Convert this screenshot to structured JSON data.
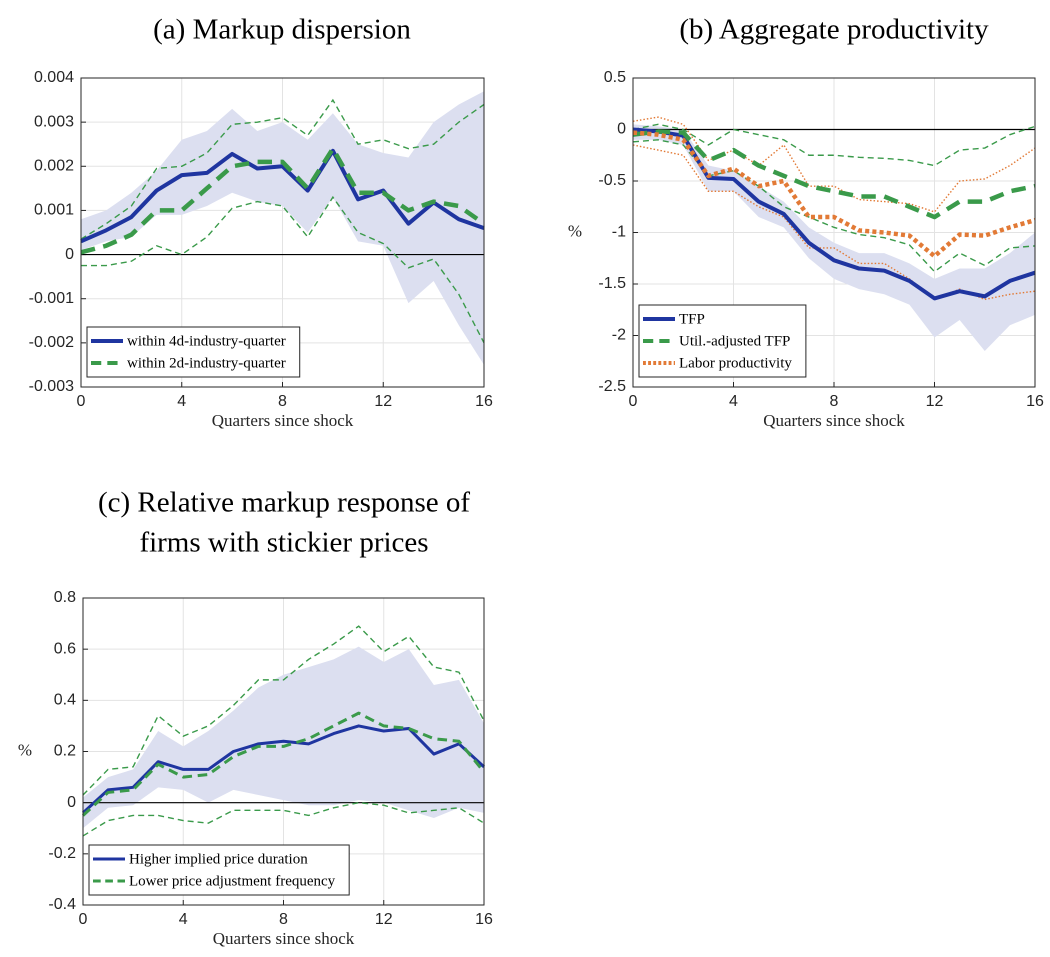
{
  "chart_data": [
    {
      "type": "line",
      "title": [
        "(a) Markup dispersion"
      ],
      "xlabel": "Quarters since shock",
      "x": [
        0,
        1,
        2,
        3,
        4,
        5,
        6,
        7,
        8,
        9,
        10,
        11,
        12,
        13,
        14,
        15,
        16
      ],
      "xlim": [
        0,
        16
      ],
      "xticks": [
        0,
        4,
        8,
        12,
        16
      ],
      "ylim": [
        -0.003,
        0.004
      ],
      "yticks": [
        -0.003,
        -0.002,
        -0.001,
        0,
        0.001,
        0.002,
        0.003,
        0.004
      ],
      "grid": true,
      "zero_line": true,
      "legend": "lower left",
      "series": [
        {
          "name": "within 4d-industry-quarter",
          "color": "#1f35a0",
          "style": "solid",
          "width": 4,
          "values": [
            0.0003,
            0.00055,
            0.00085,
            0.00145,
            0.0018,
            0.00185,
            0.00228,
            0.00195,
            0.002,
            0.00145,
            0.00235,
            0.00125,
            0.00145,
            0.0007,
            0.00118,
            0.0008,
            0.0006
          ],
          "ci": {
            "style": "band",
            "color": "#dcdff0",
            "upper": [
              0.0008,
              0.001,
              0.0014,
              0.0019,
              0.0026,
              0.0028,
              0.0033,
              0.0028,
              0.003,
              0.0026,
              0.0032,
              0.0025,
              0.0023,
              0.0022,
              0.003,
              0.0034,
              0.0037
            ],
            "lower": [
              0.0001,
              0.0003,
              0.0004,
              0.0009,
              0.0009,
              0.0011,
              0.0014,
              0.0012,
              0.0011,
              0.0005,
              0.0013,
              0.0003,
              0.0002,
              -0.0011,
              -0.0006,
              -0.0016,
              -0.0025
            ]
          }
        },
        {
          "name": "within 2d-industry-quarter",
          "color": "#3a9a4a",
          "style": "dashed",
          "width": 4.5,
          "values": [
            5e-05,
            0.0002,
            0.00045,
            0.001,
            0.001,
            0.0015,
            0.002,
            0.0021,
            0.0021,
            0.0015,
            0.0024,
            0.0014,
            0.0014,
            0.001,
            0.0012,
            0.0011,
            0.0007
          ],
          "ci": {
            "style": "dashed",
            "upper": [
              0.00035,
              0.0007,
              0.0011,
              0.00195,
              0.002,
              0.0023,
              0.00295,
              0.003,
              0.0031,
              0.0027,
              0.0035,
              0.0025,
              0.0026,
              0.0024,
              0.0025,
              0.003,
              0.0034
            ],
            "lower": [
              -0.00025,
              -0.00025,
              -0.00015,
              0.0002,
              0.0,
              0.0004,
              0.00105,
              0.0012,
              0.0011,
              0.0004,
              0.0013,
              0.0005,
              0.00025,
              -0.0003,
              -0.0001,
              -0.0009,
              -0.002
            ]
          }
        }
      ]
    },
    {
      "type": "line",
      "title": [
        "(b) Aggregate productivity"
      ],
      "xlabel": "Quarters since shock",
      "ylabel": "%",
      "x": [
        0,
        1,
        2,
        3,
        4,
        5,
        6,
        7,
        8,
        9,
        10,
        11,
        12,
        13,
        14,
        15,
        16
      ],
      "xlim": [
        0,
        16
      ],
      "xticks": [
        0,
        4,
        8,
        12,
        16
      ],
      "ylim": [
        -2.5,
        0.5
      ],
      "yticks": [
        -2.5,
        -2,
        -1.5,
        -1,
        -0.5,
        0,
        0.5
      ],
      "grid": true,
      "zero_line": true,
      "legend": "lower left",
      "series": [
        {
          "name": "TFP",
          "color": "#1f35a0",
          "style": "solid",
          "width": 4,
          "values": [
            0,
            -0.02,
            -0.06,
            -0.47,
            -0.48,
            -0.7,
            -0.82,
            -1.1,
            -1.27,
            -1.35,
            -1.37,
            -1.47,
            -1.64,
            -1.57,
            -1.62,
            -1.47,
            -1.39
          ],
          "ci": {
            "style": "band",
            "color": "#dcdff0",
            "upper": [
              0.05,
              0.03,
              0.0,
              -0.35,
              -0.4,
              -0.55,
              -0.7,
              -0.95,
              -1.1,
              -1.2,
              -1.2,
              -1.3,
              -1.45,
              -1.35,
              -1.35,
              -1.2,
              -1.0
            ],
            "lower": [
              -0.1,
              -0.1,
              -0.15,
              -0.6,
              -0.6,
              -0.85,
              -0.95,
              -1.25,
              -1.45,
              -1.55,
              -1.6,
              -1.7,
              -2.02,
              -1.85,
              -2.15,
              -1.9,
              -1.8
            ]
          }
        },
        {
          "name": "Util.-adjusted TFP",
          "color": "#3a9a4a",
          "style": "dashed",
          "width": 4.5,
          "values": [
            -0.05,
            -0.02,
            -0.03,
            -0.3,
            -0.2,
            -0.35,
            -0.45,
            -0.55,
            -0.6,
            -0.65,
            -0.65,
            -0.75,
            -0.85,
            -0.7,
            -0.7,
            -0.6,
            -0.55
          ],
          "ci": {
            "style": "dashed",
            "upper": [
              0.0,
              0.05,
              0.0,
              -0.15,
              0.0,
              -0.05,
              -0.1,
              -0.25,
              -0.25,
              -0.27,
              -0.28,
              -0.3,
              -0.35,
              -0.2,
              -0.18,
              -0.05,
              0.03
            ],
            "lower": [
              -0.12,
              -0.1,
              -0.15,
              -0.45,
              -0.4,
              -0.55,
              -0.75,
              -0.85,
              -0.95,
              -1.02,
              -1.05,
              -1.12,
              -1.38,
              -1.2,
              -1.32,
              -1.15,
              -1.13
            ]
          }
        },
        {
          "name": "Labor productivity",
          "color": "#e27a36",
          "style": "dotted",
          "width": 4.5,
          "values": [
            -0.03,
            -0.05,
            -0.1,
            -0.45,
            -0.38,
            -0.55,
            -0.5,
            -0.85,
            -0.85,
            -0.98,
            -1.0,
            -1.03,
            -1.23,
            -1.02,
            -1.03,
            -0.95,
            -0.88
          ],
          "ci": {
            "style": "dotted",
            "upper": [
              0.08,
              0.12,
              0.05,
              -0.3,
              -0.2,
              -0.35,
              -0.15,
              -0.55,
              -0.55,
              -0.68,
              -0.7,
              -0.72,
              -0.8,
              -0.5,
              -0.48,
              -0.35,
              -0.18
            ],
            "lower": [
              -0.15,
              -0.2,
              -0.25,
              -0.6,
              -0.6,
              -0.75,
              -0.85,
              -1.15,
              -1.15,
              -1.3,
              -1.3,
              -1.45,
              -1.65,
              -1.55,
              -1.65,
              -1.6,
              -1.57
            ]
          }
        }
      ]
    },
    {
      "type": "line",
      "title": [
        "(c) Relative markup response of",
        "firms with stickier prices"
      ],
      "xlabel": "Quarters since shock",
      "ylabel": "%",
      "x": [
        0,
        1,
        2,
        3,
        4,
        5,
        6,
        7,
        8,
        9,
        10,
        11,
        12,
        13,
        14,
        15,
        16
      ],
      "xlim": [
        0,
        16
      ],
      "xticks": [
        0,
        4,
        8,
        12,
        16
      ],
      "ylim": [
        -0.4,
        0.8
      ],
      "yticks": [
        -0.4,
        -0.2,
        0,
        0.2,
        0.4,
        0.6,
        0.8
      ],
      "grid": true,
      "zero_line": true,
      "legend": "lower left",
      "series": [
        {
          "name": "Higher implied price duration",
          "color": "#1f35a0",
          "style": "solid",
          "width": 3,
          "values": [
            -0.04,
            0.05,
            0.06,
            0.16,
            0.13,
            0.13,
            0.2,
            0.23,
            0.24,
            0.23,
            0.27,
            0.3,
            0.28,
            0.29,
            0.19,
            0.23,
            0.14
          ],
          "ci": {
            "style": "band",
            "color": "#dcdff0",
            "upper": [
              0.02,
              0.1,
              0.13,
              0.28,
              0.22,
              0.28,
              0.36,
              0.45,
              0.5,
              0.53,
              0.56,
              0.61,
              0.55,
              0.6,
              0.46,
              0.48,
              0.31
            ],
            "lower": [
              -0.1,
              -0.02,
              -0.01,
              0.06,
              0.05,
              0.0,
              0.05,
              0.03,
              0.01,
              -0.01,
              -0.01,
              0.01,
              0.0,
              -0.03,
              -0.06,
              -0.02,
              -0.04
            ]
          }
        },
        {
          "name": "Lower price adjustment frequency",
          "color": "#3a9a4a",
          "style": "dashed",
          "width": 3,
          "values": [
            -0.05,
            0.04,
            0.05,
            0.15,
            0.1,
            0.11,
            0.18,
            0.22,
            0.22,
            0.25,
            0.3,
            0.35,
            0.3,
            0.29,
            0.25,
            0.24,
            0.12
          ],
          "ci": {
            "style": "dashed",
            "upper": [
              0.03,
              0.13,
              0.14,
              0.34,
              0.26,
              0.3,
              0.38,
              0.48,
              0.48,
              0.56,
              0.62,
              0.69,
              0.59,
              0.65,
              0.53,
              0.51,
              0.32
            ],
            "lower": [
              -0.13,
              -0.07,
              -0.05,
              -0.05,
              -0.07,
              -0.08,
              -0.03,
              -0.03,
              -0.03,
              -0.05,
              -0.02,
              0.0,
              -0.01,
              -0.04,
              -0.03,
              -0.02,
              -0.08
            ]
          }
        }
      ]
    }
  ]
}
